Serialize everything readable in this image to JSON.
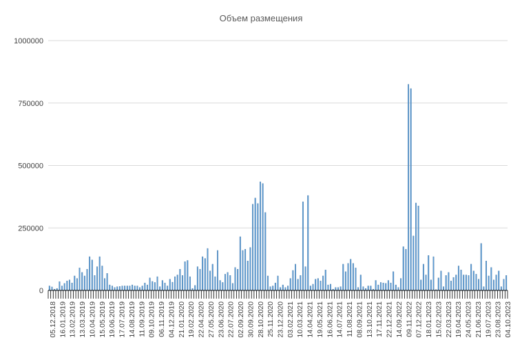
{
  "chart_data": {
    "type": "bar",
    "title": "Объем размещения",
    "xlabel": "",
    "ylabel": "",
    "ylim": [
      0,
      1000000
    ],
    "yticks": [
      0,
      250000,
      500000,
      750000,
      1000000
    ],
    "grid": true,
    "legend": "none",
    "bar_color": "#5b9bd5",
    "x_tick_labels": [
      "05.12.2018",
      "16.01.2019",
      "13.02.2019",
      "13.03.2019",
      "10.04.2019",
      "15.05.2019",
      "19.06.2019",
      "17.07.2019",
      "14.08.2019",
      "11.09.2019",
      "09.10.2019",
      "06.11.2019",
      "04.12.2019",
      "21.01.2020",
      "19.02.2020",
      "22.04.2020",
      "27.05.2020",
      "23.06.2020",
      "22.07.2020",
      "02.09.2020",
      "30.09.2020",
      "28.10.2020",
      "25.11.2020",
      "23.12.2020",
      "03.02.2021",
      "10.03.2021",
      "14.04.2021",
      "19.05.2021",
      "16.06.2021",
      "14.07.2021",
      "11.08.2021",
      "08.09.2021",
      "13.10.2021",
      "17.11.2021",
      "22.12.2021",
      "14.09.2022",
      "09.11.2022",
      "07.12.2022",
      "18.01.2023",
      "15.02.2023",
      "22.03.2023",
      "19.04.2023",
      "24.05.2023",
      "21.06.2023",
      "19.07.2023",
      "23.08.2023",
      "04.10.2023"
    ],
    "values": [
      18000,
      14000,
      5000,
      8000,
      35000,
      18000,
      28000,
      38000,
      42000,
      30000,
      58000,
      48000,
      90000,
      72000,
      58000,
      85000,
      135000,
      122000,
      60000,
      95000,
      135000,
      98000,
      48000,
      68000,
      22000,
      18000,
      12000,
      15000,
      16000,
      18000,
      18000,
      18000,
      18000,
      22000,
      18000,
      18000,
      12000,
      18000,
      30000,
      22000,
      50000,
      36000,
      32000,
      55000,
      15000,
      40000,
      30000,
      18000,
      45000,
      33000,
      55000,
      62000,
      85000,
      60000,
      115000,
      120000,
      55000,
      8000,
      20000,
      95000,
      85000,
      135000,
      128000,
      168000,
      78000,
      105000,
      55000,
      160000,
      40000,
      32000,
      65000,
      72000,
      60000,
      28000,
      92000,
      85000,
      215000,
      160000,
      165000,
      118000,
      172000,
      345000,
      370000,
      348000,
      435000,
      428000,
      312000,
      58000,
      15000,
      18000,
      30000,
      58000,
      12000,
      22000,
      12000,
      18000,
      48000,
      80000,
      105000,
      45000,
      60000,
      355000,
      95000,
      380000,
      18000,
      25000,
      45000,
      48000,
      38000,
      58000,
      82000,
      22000,
      25000,
      5000,
      12000,
      12000,
      15000,
      105000,
      75000,
      108000,
      125000,
      108000,
      90000,
      12000,
      62000,
      15000,
      8000,
      18000,
      18000,
      5000,
      40000,
      22000,
      32000,
      30000,
      28000,
      40000,
      30000,
      75000,
      22000,
      12000,
      48000,
      175000,
      165000,
      825000,
      808000,
      218000,
      350000,
      338000,
      42000,
      105000,
      62000,
      140000,
      42000,
      135000,
      3000,
      50000,
      78000,
      15000,
      60000,
      72000,
      38000,
      52000,
      62000,
      98000,
      82000,
      62000,
      62000,
      60000,
      105000,
      78000,
      65000,
      45000,
      188000,
      15000,
      118000,
      58000,
      92000,
      42000,
      62000,
      78000,
      15000,
      45000,
      60000
    ]
  }
}
